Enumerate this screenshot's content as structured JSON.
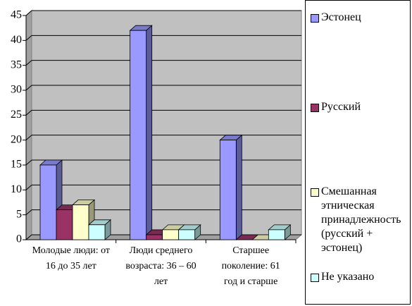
{
  "chart_data": {
    "type": "bar",
    "categories": [
      "Молодые люди: от 16 до 35 лет",
      "Люди среднего возраста: 36 – 60 лет",
      "Старшее поколение: 61 год и старше"
    ],
    "series": [
      {
        "name": "Эстонец",
        "color": "#9999ff",
        "values": [
          15,
          42,
          20
        ]
      },
      {
        "name": "Русский",
        "color": "#993366",
        "values": [
          6,
          1,
          0
        ]
      },
      {
        "name": "Смешанная этническая принадлежность (русский + эстонец)",
        "color": "#ffffcc",
        "values": [
          7,
          2,
          0
        ]
      },
      {
        "name": "Не указано",
        "color": "#ccffff",
        "values": [
          3,
          2,
          2
        ]
      }
    ],
    "ylim": [
      0,
      45
    ],
    "yticks": [
      0,
      5,
      10,
      15,
      20,
      25,
      30,
      35,
      40,
      45
    ],
    "grid": true,
    "legend": "right"
  }
}
